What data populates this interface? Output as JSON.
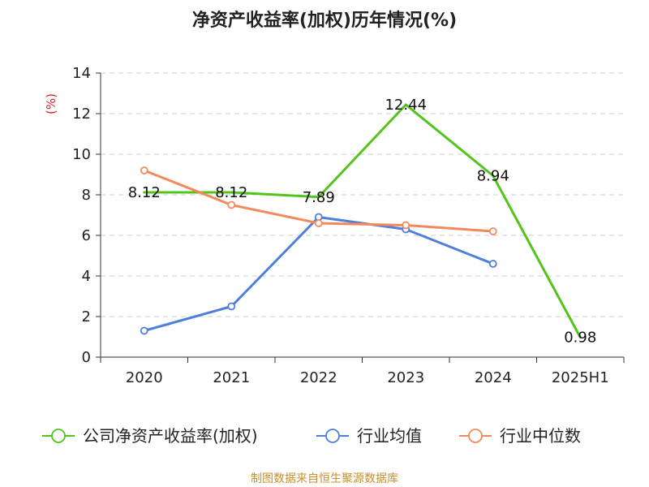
{
  "chart_data": {
    "type": "line",
    "title": "净资产收益率(加权)历年情况(%)",
    "ylabel": "(%)",
    "xlabel": "",
    "categories": [
      "2020",
      "2021",
      "2022",
      "2023",
      "2024",
      "2025H1"
    ],
    "y_ticks": [
      "0",
      "2",
      "4",
      "6",
      "8",
      "10",
      "12",
      "14"
    ],
    "ylim": [
      0,
      14
    ],
    "grid": "horizontal dashed",
    "legend_position": "bottom",
    "series": [
      {
        "name": "公司净资产收益率(加权)",
        "color": "#52c41a",
        "values": [
          8.12,
          8.12,
          7.89,
          12.44,
          8.94,
          0.98
        ],
        "labels": [
          "8.12",
          "8.12",
          "7.89",
          "12.44",
          "8.94",
          "0.98"
        ],
        "markers": false
      },
      {
        "name": "行业均值",
        "color": "#4e7fdc",
        "values": [
          1.3,
          2.5,
          6.9,
          6.3,
          4.6,
          null
        ],
        "markers": true
      },
      {
        "name": "行业中位数",
        "color": "#f5895b",
        "values": [
          9.2,
          7.5,
          6.6,
          6.5,
          6.2,
          null
        ],
        "markers": true
      }
    ]
  },
  "source": "制图数据来自恒生聚源数据库"
}
